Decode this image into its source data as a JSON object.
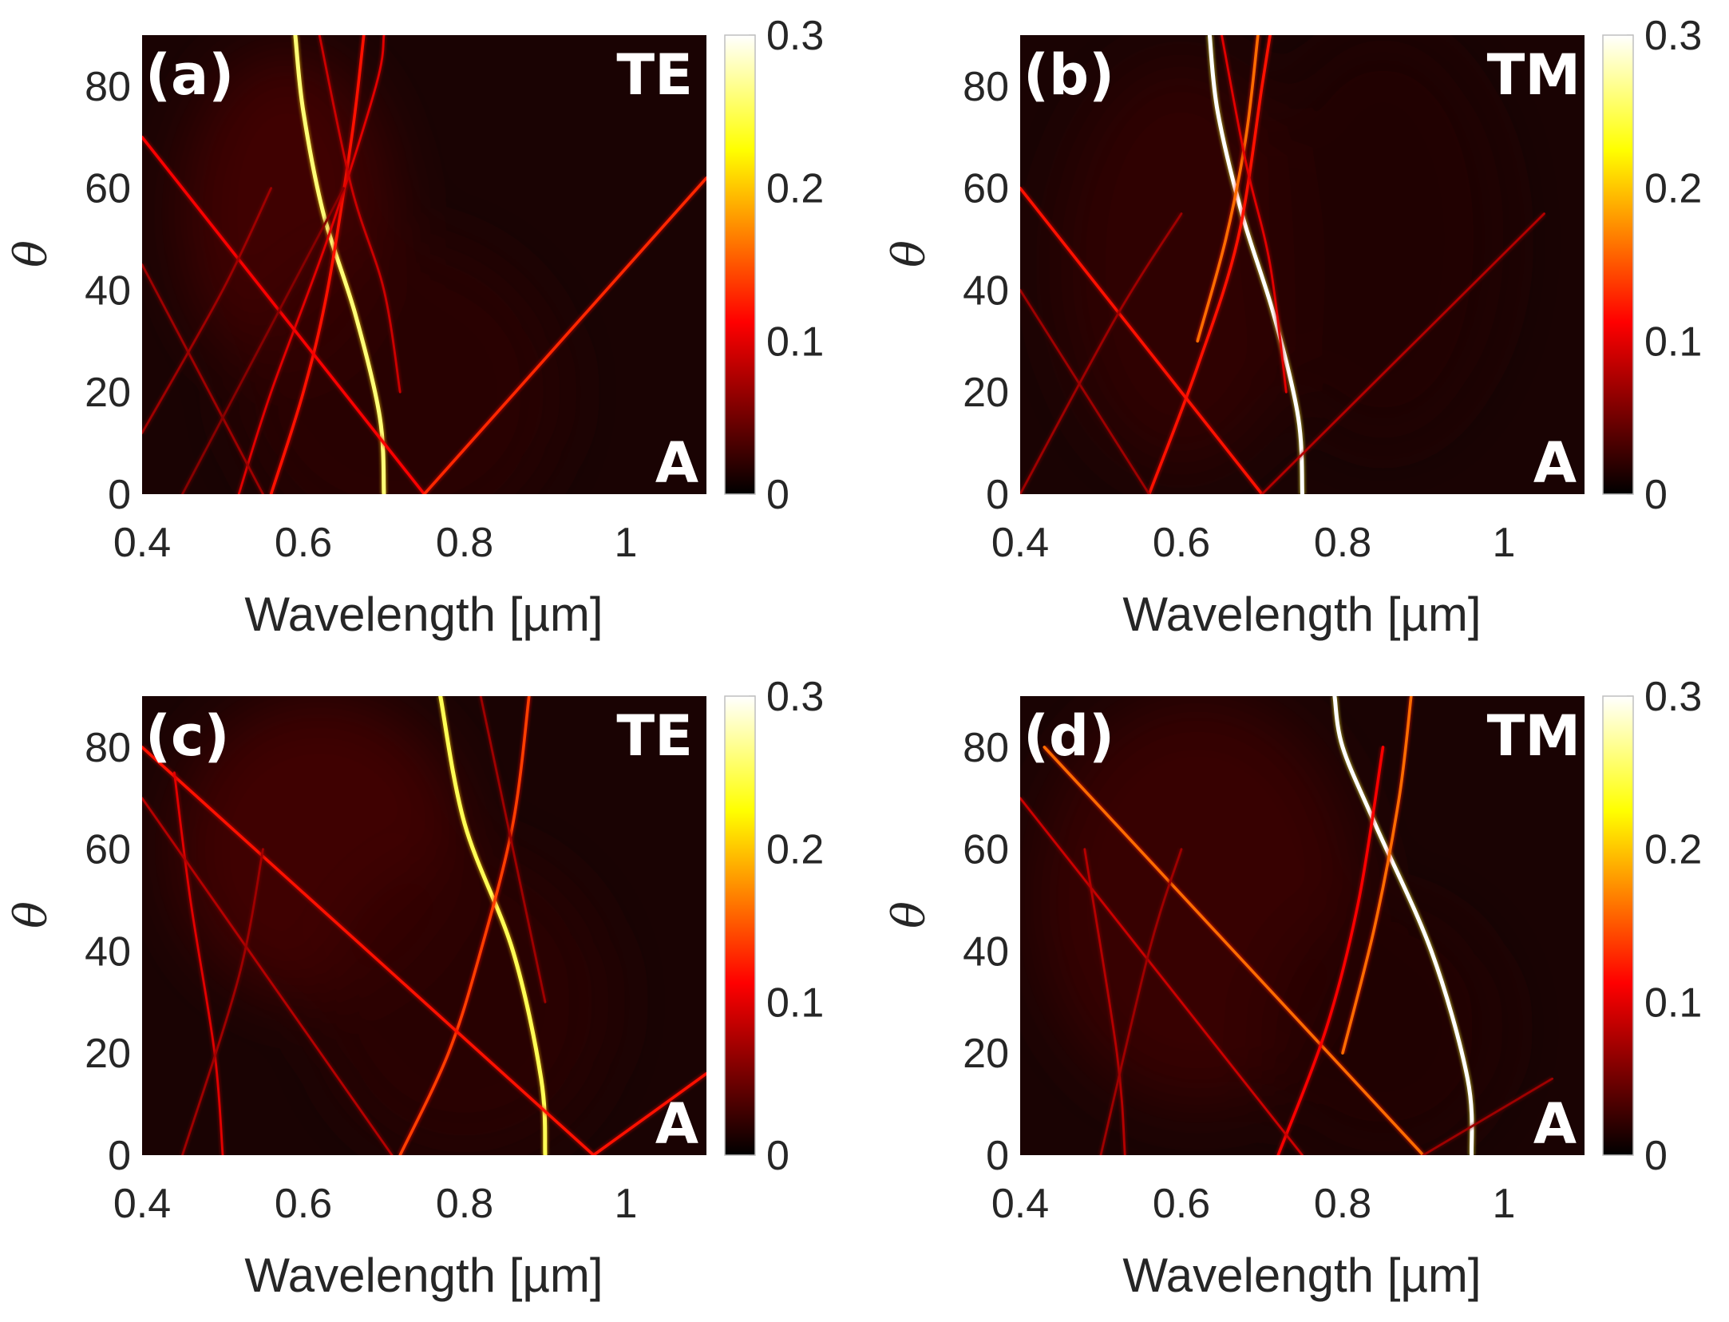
{
  "chart_data": [
    {
      "type": "heatmap",
      "panel_label": "(a)",
      "polarization": "TE",
      "quantity_label": "A",
      "xlabel": "Wavelength [µm]",
      "ylabel": "θ",
      "xlim": [
        0.4,
        1.1
      ],
      "ylim": [
        0,
        90
      ],
      "xticks": [
        0.4,
        0.6,
        0.8,
        1
      ],
      "xtick_labels": [
        "0.4",
        "0.6",
        "0.8",
        "1"
      ],
      "yticks": [
        0,
        20,
        40,
        60,
        80
      ],
      "ytick_labels": [
        "0",
        "20",
        "40",
        "60",
        "80"
      ],
      "colorbar": {
        "min": 0,
        "max": 0.3,
        "ticks": [
          0,
          0.1,
          0.2,
          0.3
        ],
        "tick_labels": [
          "0",
          "0.1",
          "0.2",
          "0.3"
        ],
        "colormap": "hot"
      },
      "background_blobs": [
        {
          "x": 0.58,
          "y": 55,
          "rx": 0.13,
          "ry": 32,
          "value": 0.035
        },
        {
          "x": 0.72,
          "y": 20,
          "rx": 0.2,
          "ry": 30,
          "value": 0.02
        }
      ],
      "resonances": [
        {
          "name": "mode-1",
          "value": 0.26,
          "points": [
            [
              0.7,
              0
            ],
            [
              0.695,
              15
            ],
            [
              0.665,
              35
            ],
            [
              0.625,
              55
            ],
            [
              0.6,
              75
            ],
            [
              0.59,
              90
            ]
          ]
        },
        {
          "name": "mode-2",
          "value": 0.12,
          "points": [
            [
              0.56,
              0
            ],
            [
              0.6,
              20
            ],
            [
              0.63,
              40
            ],
            [
              0.66,
              70
            ],
            [
              0.675,
              90
            ]
          ]
        },
        {
          "name": "mode-3",
          "value": 0.1,
          "points": [
            [
              0.52,
              0
            ],
            [
              0.56,
              20
            ],
            [
              0.63,
              50
            ],
            [
              0.69,
              80
            ],
            [
              0.7,
              90
            ]
          ]
        },
        {
          "name": "mode-4",
          "value": 0.09,
          "points": [
            [
              0.62,
              90
            ],
            [
              0.66,
              60
            ],
            [
              0.7,
              40
            ],
            [
              0.72,
              20
            ]
          ]
        },
        {
          "name": "diffraction-left",
          "value": 0.11,
          "points": [
            [
              0.4,
              70
            ],
            [
              0.75,
              0
            ]
          ]
        },
        {
          "name": "diffraction-right",
          "value": 0.13,
          "points": [
            [
              0.75,
              0
            ],
            [
              1.1,
              62
            ]
          ]
        },
        {
          "name": "mode-5",
          "value": 0.07,
          "points": [
            [
              0.4,
              45
            ],
            [
              0.55,
              0
            ]
          ]
        },
        {
          "name": "mode-6",
          "value": 0.07,
          "points": [
            [
              0.4,
              12
            ],
            [
              0.5,
              40
            ],
            [
              0.56,
              60
            ]
          ]
        },
        {
          "name": "mode-7",
          "value": 0.06,
          "points": [
            [
              0.45,
              0
            ],
            [
              0.55,
              30
            ],
            [
              0.65,
              60
            ]
          ]
        }
      ]
    },
    {
      "type": "heatmap",
      "panel_label": "(b)",
      "polarization": "TM",
      "quantity_label": "A",
      "xlabel": "Wavelength [µm]",
      "ylabel": "θ",
      "xlim": [
        0.4,
        1.1
      ],
      "ylim": [
        0,
        90
      ],
      "xticks": [
        0.4,
        0.6,
        0.8,
        1
      ],
      "xtick_labels": [
        "0.4",
        "0.6",
        "0.8",
        "1"
      ],
      "yticks": [
        0,
        20,
        40,
        60,
        80
      ],
      "ytick_labels": [
        "0",
        "20",
        "40",
        "60",
        "80"
      ],
      "colorbar": {
        "min": 0,
        "max": 0.3,
        "ticks": [
          0,
          0.1,
          0.2,
          0.3
        ],
        "tick_labels": [
          "0",
          "0.1",
          "0.2",
          "0.3"
        ],
        "colormap": "hot"
      },
      "background_blobs": [
        {
          "x": 0.6,
          "y": 45,
          "rx": 0.15,
          "ry": 40,
          "value": 0.025
        },
        {
          "x": 0.85,
          "y": 50,
          "rx": 0.15,
          "ry": 40,
          "value": 0.015
        }
      ],
      "resonances": [
        {
          "name": "mode-1",
          "value": 0.3,
          "points": [
            [
              0.75,
              0
            ],
            [
              0.745,
              15
            ],
            [
              0.715,
              35
            ],
            [
              0.675,
              55
            ],
            [
              0.645,
              75
            ],
            [
              0.635,
              90
            ]
          ]
        },
        {
          "name": "mode-2",
          "value": 0.16,
          "points": [
            [
              0.62,
              30
            ],
            [
              0.655,
              50
            ],
            [
              0.68,
              70
            ],
            [
              0.695,
              90
            ]
          ]
        },
        {
          "name": "mode-3",
          "value": 0.12,
          "points": [
            [
              0.56,
              0
            ],
            [
              0.62,
              25
            ],
            [
              0.67,
              50
            ],
            [
              0.7,
              80
            ],
            [
              0.71,
              90
            ]
          ]
        },
        {
          "name": "mode-4",
          "value": 0.1,
          "points": [
            [
              0.65,
              90
            ],
            [
              0.68,
              65
            ],
            [
              0.71,
              45
            ],
            [
              0.73,
              20
            ]
          ]
        },
        {
          "name": "diffraction-left",
          "value": 0.12,
          "points": [
            [
              0.4,
              60
            ],
            [
              0.7,
              0
            ]
          ]
        },
        {
          "name": "diffraction-right",
          "value": 0.08,
          "points": [
            [
              0.7,
              0
            ],
            [
              1.05,
              55
            ]
          ]
        },
        {
          "name": "mode-5",
          "value": 0.07,
          "points": [
            [
              0.4,
              40
            ],
            [
              0.56,
              0
            ]
          ]
        },
        {
          "name": "mode-6",
          "value": 0.07,
          "points": [
            [
              0.4,
              0
            ],
            [
              0.52,
              35
            ],
            [
              0.6,
              55
            ]
          ]
        }
      ]
    },
    {
      "type": "heatmap",
      "panel_label": "(c)",
      "polarization": "TE",
      "quantity_label": "A",
      "xlabel": "Wavelength [µm]",
      "ylabel": "θ",
      "xlim": [
        0.4,
        1.1
      ],
      "ylim": [
        0,
        90
      ],
      "xticks": [
        0.4,
        0.6,
        0.8,
        1
      ],
      "xtick_labels": [
        "0.4",
        "0.6",
        "0.8",
        "1"
      ],
      "yticks": [
        0,
        20,
        40,
        60,
        80
      ],
      "ytick_labels": [
        "0",
        "20",
        "40",
        "60",
        "80"
      ],
      "colorbar": {
        "min": 0,
        "max": 0.3,
        "ticks": [
          0,
          0.1,
          0.2,
          0.3
        ],
        "tick_labels": [
          "0",
          "0.1",
          "0.2",
          "0.3"
        ],
        "colormap": "hot"
      },
      "background_blobs": [
        {
          "x": 0.62,
          "y": 60,
          "rx": 0.18,
          "ry": 30,
          "value": 0.035
        },
        {
          "x": 0.8,
          "y": 30,
          "rx": 0.18,
          "ry": 30,
          "value": 0.02
        }
      ],
      "resonances": [
        {
          "name": "mode-1",
          "value": 0.25,
          "points": [
            [
              0.9,
              0
            ],
            [
              0.895,
              15
            ],
            [
              0.86,
              40
            ],
            [
              0.8,
              65
            ],
            [
              0.77,
              90
            ]
          ]
        },
        {
          "name": "mode-2",
          "value": 0.14,
          "points": [
            [
              0.72,
              0
            ],
            [
              0.78,
              20
            ],
            [
              0.82,
              40
            ],
            [
              0.86,
              65
            ],
            [
              0.88,
              90
            ]
          ]
        },
        {
          "name": "diffraction-left",
          "value": 0.12,
          "points": [
            [
              0.4,
              80
            ],
            [
              0.96,
              0
            ]
          ]
        },
        {
          "name": "diffraction-right",
          "value": 0.12,
          "points": [
            [
              0.96,
              0
            ],
            [
              1.1,
              16
            ]
          ]
        },
        {
          "name": "mode-3",
          "value": 0.1,
          "points": [
            [
              0.5,
              0
            ],
            [
              0.49,
              20
            ],
            [
              0.46,
              50
            ],
            [
              0.44,
              75
            ]
          ]
        },
        {
          "name": "mode-4",
          "value": 0.08,
          "points": [
            [
              0.4,
              70
            ],
            [
              0.71,
              0
            ]
          ]
        },
        {
          "name": "mode-5",
          "value": 0.07,
          "points": [
            [
              0.45,
              0
            ],
            [
              0.52,
              35
            ],
            [
              0.55,
              60
            ]
          ]
        },
        {
          "name": "mode-6",
          "value": 0.07,
          "points": [
            [
              0.82,
              90
            ],
            [
              0.86,
              60
            ],
            [
              0.9,
              30
            ]
          ]
        }
      ]
    },
    {
      "type": "heatmap",
      "panel_label": "(d)",
      "polarization": "TM",
      "quantity_label": "A",
      "xlabel": "Wavelength [µm]",
      "ylabel": "θ",
      "xlim": [
        0.4,
        1.1
      ],
      "ylim": [
        0,
        90
      ],
      "xticks": [
        0.4,
        0.6,
        0.8,
        1
      ],
      "xtick_labels": [
        "0.4",
        "0.6",
        "0.8",
        "1"
      ],
      "yticks": [
        0,
        20,
        40,
        60,
        80
      ],
      "ytick_labels": [
        "0",
        "20",
        "40",
        "60",
        "80"
      ],
      "colorbar": {
        "min": 0,
        "max": 0.3,
        "ticks": [
          0,
          0.1,
          0.2,
          0.3
        ],
        "tick_labels": [
          "0",
          "0.1",
          "0.2",
          "0.3"
        ],
        "colormap": "hot"
      },
      "background_blobs": [
        {
          "x": 0.62,
          "y": 50,
          "rx": 0.2,
          "ry": 40,
          "value": 0.03
        },
        {
          "x": 0.85,
          "y": 25,
          "rx": 0.15,
          "ry": 25,
          "value": 0.015
        }
      ],
      "resonances": [
        {
          "name": "mode-1",
          "value": 0.3,
          "points": [
            [
              0.96,
              0
            ],
            [
              0.955,
              15
            ],
            [
              0.91,
              40
            ],
            [
              0.84,
              65
            ],
            [
              0.8,
              80
            ],
            [
              0.79,
              90
            ]
          ]
        },
        {
          "name": "mode-2",
          "value": 0.16,
          "points": [
            [
              0.8,
              20
            ],
            [
              0.84,
              45
            ],
            [
              0.87,
              70
            ],
            [
              0.885,
              90
            ]
          ]
        },
        {
          "name": "diffraction-left",
          "value": 0.16,
          "points": [
            [
              0.43,
              80
            ],
            [
              0.9,
              0
            ]
          ]
        },
        {
          "name": "diffraction-right",
          "value": 0.07,
          "points": [
            [
              0.9,
              0
            ],
            [
              1.06,
              15
            ]
          ]
        },
        {
          "name": "mode-3",
          "value": 0.11,
          "points": [
            [
              0.72,
              0
            ],
            [
              0.78,
              25
            ],
            [
              0.82,
              50
            ],
            [
              0.85,
              80
            ]
          ]
        },
        {
          "name": "mode-4",
          "value": 0.09,
          "points": [
            [
              0.4,
              70
            ],
            [
              0.75,
              0
            ]
          ]
        },
        {
          "name": "mode-5",
          "value": 0.08,
          "points": [
            [
              0.53,
              0
            ],
            [
              0.52,
              20
            ],
            [
              0.48,
              60
            ]
          ]
        },
        {
          "name": "mode-6",
          "value": 0.07,
          "points": [
            [
              0.5,
              0
            ],
            [
              0.56,
              40
            ],
            [
              0.6,
              60
            ]
          ]
        }
      ]
    }
  ]
}
